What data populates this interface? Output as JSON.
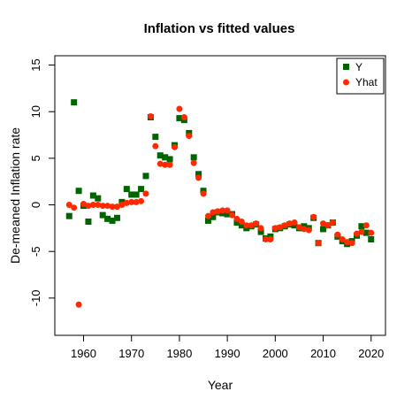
{
  "chart_data": {
    "type": "scatter",
    "title": "Inflation vs fitted values",
    "xlabel": "Year",
    "ylabel": "De-meaned Inflation rate",
    "xlim": [
      1954,
      2023
    ],
    "ylim": [
      -14,
      16
    ],
    "x_ticks": [
      1960,
      1970,
      1980,
      1990,
      2000,
      2010,
      2020
    ],
    "y_ticks": [
      -10,
      -5,
      0,
      5,
      10,
      15
    ],
    "grid": false,
    "legend_position": "top-right",
    "series": [
      {
        "name": "Y",
        "color": "#006400",
        "marker": "square",
        "x": [
          1957,
          1958,
          1959,
          1960,
          1961,
          1962,
          1963,
          1964,
          1965,
          1966,
          1967,
          1968,
          1969,
          1970,
          1971,
          1972,
          1973,
          1974,
          1975,
          1976,
          1977,
          1978,
          1979,
          1980,
          1981,
          1982,
          1983,
          1984,
          1985,
          1986,
          1987,
          1988,
          1989,
          1990,
          1991,
          1992,
          1993,
          1994,
          1995,
          1996,
          1997,
          1998,
          1999,
          2000,
          2001,
          2002,
          2003,
          2004,
          2005,
          2006,
          2007,
          2008,
          2009,
          2010,
          2011,
          2012,
          2013,
          2014,
          2015,
          2016,
          2017,
          2018,
          2019,
          2020
        ],
        "y": [
          -1.2,
          11.0,
          1.5,
          -0.1,
          -1.8,
          1.0,
          0.7,
          -1.1,
          -1.5,
          -1.7,
          -1.4,
          0.3,
          1.7,
          1.1,
          1.1,
          1.7,
          3.1,
          9.4,
          7.3,
          5.3,
          5.1,
          4.9,
          6.4,
          9.3,
          9.1,
          7.7,
          5.1,
          3.3,
          1.5,
          -1.7,
          -1.3,
          -0.8,
          -0.9,
          -1.0,
          -1.0,
          -1.9,
          -2.2,
          -2.5,
          -2.3,
          -2.1,
          -2.9,
          -3.6,
          -3.4,
          -2.6,
          -2.5,
          -2.3,
          -2.1,
          -2.2,
          -2.5,
          -2.3,
          -2.5,
          -1.4,
          -4.1,
          -2.6,
          -2.2,
          -1.9,
          -3.4,
          -3.9,
          -4.2,
          -3.9,
          -3.3,
          -2.3,
          -3.0,
          -3.7
        ]
      },
      {
        "name": "Yhat",
        "color": "#ff2a00",
        "marker": "circle",
        "x": [
          1957,
          1958,
          1959,
          1960,
          1961,
          1962,
          1963,
          1964,
          1965,
          1966,
          1967,
          1968,
          1969,
          1970,
          1971,
          1972,
          1973,
          1974,
          1975,
          1976,
          1977,
          1978,
          1979,
          1980,
          1981,
          1982,
          1983,
          1984,
          1985,
          1986,
          1987,
          1988,
          1989,
          1990,
          1991,
          1992,
          1993,
          1994,
          1995,
          1996,
          1997,
          1998,
          1999,
          2000,
          2001,
          2002,
          2003,
          2004,
          2005,
          2006,
          2007,
          2008,
          2009,
          2010,
          2011,
          2012,
          2013,
          2014,
          2015,
          2016,
          2017,
          2018,
          2019,
          2020
        ],
        "y": [
          0.0,
          -0.3,
          -10.7,
          0.1,
          -0.1,
          0.0,
          0.0,
          -0.1,
          -0.1,
          -0.2,
          -0.2,
          0.0,
          0.2,
          0.3,
          0.3,
          0.4,
          1.2,
          9.5,
          6.3,
          4.4,
          4.3,
          4.3,
          6.2,
          10.3,
          9.4,
          7.4,
          4.5,
          2.9,
          1.2,
          -1.2,
          -0.8,
          -0.7,
          -0.6,
          -0.6,
          -1.1,
          -1.5,
          -1.8,
          -2.2,
          -2.2,
          -2.0,
          -2.5,
          -3.7,
          -3.7,
          -2.5,
          -2.4,
          -2.2,
          -2.0,
          -1.9,
          -2.4,
          -2.6,
          -2.7,
          -1.3,
          -4.1,
          -2.0,
          -2.2,
          -1.9,
          -3.2,
          -3.7,
          -4.0,
          -4.1,
          -3.1,
          -2.9,
          -2.2,
          -3.0
        ]
      }
    ]
  }
}
